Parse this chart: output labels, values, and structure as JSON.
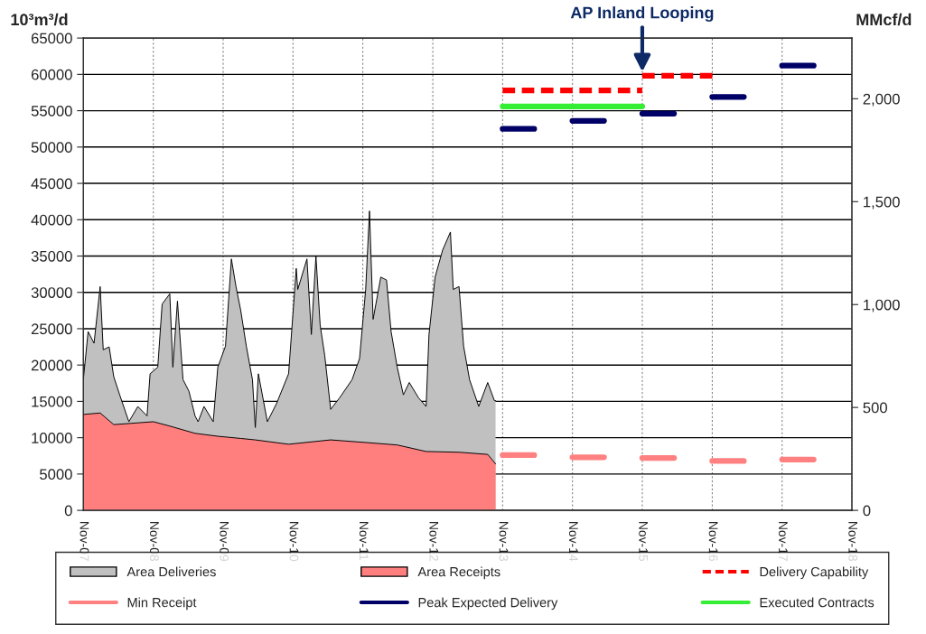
{
  "chart_data": {
    "type": "area",
    "ylabel": "10³m³/d",
    "y2label": "MMcf/d",
    "xlim": [
      "2007-11-01",
      "2018-11-01"
    ],
    "xticks": [
      {
        "value": "2007-11-01",
        "label": "Nov-07"
      },
      {
        "value": "2008-11-01",
        "label": "Nov-08"
      },
      {
        "value": "2009-11-01",
        "label": "Nov-09"
      },
      {
        "value": "2010-11-01",
        "label": "Nov-10"
      },
      {
        "value": "2011-11-01",
        "label": "Nov-11"
      },
      {
        "value": "2012-11-01",
        "label": "Nov-12"
      },
      {
        "value": "2013-11-01",
        "label": "Nov-13"
      },
      {
        "value": "2014-11-01",
        "label": "Nov-14"
      },
      {
        "value": "2015-11-01",
        "label": "Nov-15"
      },
      {
        "value": "2016-11-01",
        "label": "Nov-16"
      },
      {
        "value": "2017-11-01",
        "label": "Nov-17"
      },
      {
        "value": "2018-11-01",
        "label": "Nov-18"
      }
    ],
    "ylim": [
      0,
      65000
    ],
    "yticks": [
      0,
      5000,
      10000,
      15000,
      20000,
      25000,
      30000,
      35000,
      40000,
      45000,
      50000,
      55000,
      60000,
      65000
    ],
    "y2lim": [
      0,
      2295
    ],
    "y2ticks": [
      0,
      500,
      {
        "value": 1000,
        "label": "1,000"
      },
      {
        "value": 1500,
        "label": "1,500"
      },
      {
        "value": 2000,
        "label": "2,000"
      }
    ],
    "grid": true,
    "legend": "bottom",
    "marker": "none",
    "annotations": [
      {
        "text": "AP Inland Looping",
        "x": "2015-11-01",
        "y": 60000
      }
    ],
    "series": [
      {
        "name": "Area Deliveries",
        "color": "#c0c0c0",
        "x": [
          "2007-11-01",
          "2007-11-26",
          "2007-12-27",
          "2008-01-28",
          "2008-02-13",
          "2008-03-15",
          "2008-04-08",
          "2008-05-09",
          "2008-06-26",
          "2008-08-12",
          "2008-09-29",
          "2008-10-15",
          "2008-11-24",
          "2008-12-17",
          "2009-01-26",
          "2009-02-11",
          "2009-03-07",
          "2009-04-05",
          "2009-05-06",
          "2009-06-07",
          "2009-06-23",
          "2009-07-24",
          "2009-09-10",
          "2009-10-04",
          "2009-11-13",
          "2009-12-14",
          "2010-01-07",
          "2010-02-01",
          "2010-03-02",
          "2010-04-03",
          "2010-04-18",
          "2010-05-04",
          "2010-06-20",
          "2010-08-07",
          "2010-10-09",
          "2010-11-18",
          "2010-11-26",
          "2011-01-13",
          "2011-02-05",
          "2011-03-01",
          "2011-03-23",
          "2011-04-16",
          "2011-05-17",
          "2011-07-03",
          "2011-09-06",
          "2011-10-15",
          "2011-11-16",
          "2011-12-06",
          "2011-12-25",
          "2012-02-03",
          "2012-03-04",
          "2012-03-28",
          "2012-04-29",
          "2012-05-31",
          "2012-07-01",
          "2012-08-18",
          "2012-09-27",
          "2012-10-12",
          "2012-11-13",
          "2012-12-22",
          "2013-02-01",
          "2013-02-16",
          "2013-03-18",
          "2013-04-11",
          "2013-05-12",
          "2013-06-29",
          "2013-08-15",
          "2013-09-19",
          "2013-09-25"
        ],
        "values": [
          18000,
          24600,
          23000,
          30800,
          22100,
          22500,
          18400,
          15900,
          12200,
          14300,
          13000,
          18800,
          19700,
          28400,
          29800,
          19700,
          28800,
          18000,
          16400,
          13000,
          12200,
          14300,
          12200,
          19700,
          22600,
          34600,
          30800,
          27500,
          22600,
          18000,
          11400,
          18800,
          12200,
          14700,
          18800,
          33300,
          30400,
          34600,
          24200,
          35000,
          25500,
          21300,
          13900,
          15500,
          18000,
          20900,
          30400,
          41200,
          26300,
          32100,
          31700,
          24600,
          19700,
          15900,
          17600,
          15500,
          14300,
          24200,
          32100,
          35800,
          38300,
          30400,
          30800,
          22600,
          18000,
          14300,
          17600,
          15100,
          15100
        ]
      },
      {
        "name": "Area Receipts",
        "color": "#ff7f7f",
        "x": [
          "2007-11-01",
          "2008-01-28",
          "2008-04-08",
          "2008-11-01",
          "2009-01-26",
          "2009-06-07",
          "2009-10-04",
          "2010-02-01",
          "2010-04-18",
          "2010-10-09",
          "2011-05-17",
          "2011-12-06",
          "2012-04-29",
          "2012-09-27",
          "2013-03-18",
          "2013-08-15",
          "2013-09-25"
        ],
        "values": [
          13200,
          13400,
          11800,
          12200,
          11600,
          10600,
          10200,
          9900,
          9700,
          9100,
          9700,
          9300,
          9000,
          8100,
          8000,
          7700,
          6400
        ]
      },
      {
        "name": "Delivery Capability",
        "type": "line",
        "line_style": "dashed",
        "color": "#ff0000",
        "x": [
          "2013-11-01",
          "2015-11-01"
        ],
        "values": [
          57800,
          57800
        ]
      },
      {
        "type": "line",
        "line_style": "dashed",
        "color": "#ff0000",
        "x": [
          "2015-11-01",
          "2016-11-01"
        ],
        "values": [
          59800,
          59800
        ]
      },
      {
        "name": "Min Receipt",
        "type": "line",
        "line_style": "solid",
        "color": "#ff8080",
        "x": [
          "2013-11-01",
          "2014-04-15"
        ],
        "values": [
          7600,
          7600
        ]
      },
      {
        "type": "line",
        "line_style": "solid",
        "color": "#ff8080",
        "x": [
          "2014-11-01",
          "2015-04-15"
        ],
        "values": [
          7300,
          7300
        ]
      },
      {
        "type": "line",
        "line_style": "solid",
        "color": "#ff8080",
        "x": [
          "2015-11-01",
          "2016-04-15"
        ],
        "values": [
          7200,
          7200
        ]
      },
      {
        "type": "line",
        "line_style": "solid",
        "color": "#ff8080",
        "x": [
          "2016-11-01",
          "2017-04-15"
        ],
        "values": [
          6800,
          6800
        ]
      },
      {
        "type": "line",
        "line_style": "solid",
        "color": "#ff8080",
        "x": [
          "2017-11-01",
          "2018-04-15"
        ],
        "values": [
          7000,
          7000
        ]
      },
      {
        "name": "Peak Expected Delivery",
        "type": "line",
        "line_style": "solid",
        "color": "#000066",
        "x": [
          "2013-11-01",
          "2014-04-15"
        ],
        "values": [
          52500,
          52500
        ]
      },
      {
        "type": "line",
        "line_style": "solid",
        "color": "#000066",
        "x": [
          "2014-11-01",
          "2015-04-15"
        ],
        "values": [
          53600,
          53600
        ]
      },
      {
        "type": "line",
        "line_style": "solid",
        "color": "#000066",
        "x": [
          "2015-11-01",
          "2016-04-15"
        ],
        "values": [
          54600,
          54600
        ]
      },
      {
        "type": "line",
        "line_style": "solid",
        "color": "#000066",
        "x": [
          "2016-11-01",
          "2017-04-15"
        ],
        "values": [
          56900,
          56900
        ]
      },
      {
        "type": "line",
        "line_style": "solid",
        "color": "#000066",
        "x": [
          "2017-11-01",
          "2018-04-15"
        ],
        "values": [
          61200,
          61200
        ]
      },
      {
        "name": "Executed Contracts",
        "type": "line",
        "line_style": "solid",
        "color": "#33ee33",
        "x": [
          "2013-11-01",
          "2015-11-01"
        ],
        "values": [
          55600,
          55600
        ]
      }
    ]
  }
}
